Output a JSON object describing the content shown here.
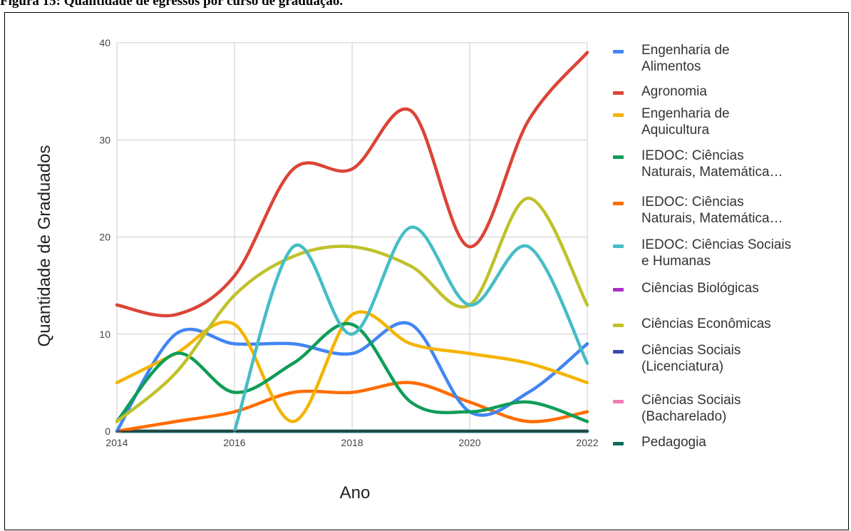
{
  "caption": "Figura 15: Quantidade de egressos por curso de graduação.",
  "chart_data": {
    "type": "line",
    "title": "",
    "xlabel": "Ano",
    "ylabel": "Quantidade de Graduados",
    "xlim": [
      2014,
      2022
    ],
    "ylim": [
      0,
      40
    ],
    "x_ticks": [
      "2014",
      "2016",
      "2018",
      "2020",
      "2022"
    ],
    "y_ticks": [
      "0",
      "10",
      "20",
      "30",
      "40"
    ],
    "grid": true,
    "legend_position": "right",
    "x": [
      2014,
      2015,
      2016,
      2017,
      2018,
      2019,
      2020,
      2021,
      2022
    ],
    "series": [
      {
        "name": "Engenharia de Alimentos",
        "color": "#4285f4",
        "values": [
          0,
          10,
          9,
          9,
          8,
          11,
          2,
          4,
          9
        ]
      },
      {
        "name": "Agronomia",
        "color": "#db4437",
        "values": [
          13,
          12,
          16,
          27,
          27,
          33,
          19,
          32,
          39
        ]
      },
      {
        "name": "Engenharia de Aquicultura",
        "color": "#f4b400",
        "values": [
          5,
          8,
          11,
          1,
          12,
          9,
          8,
          7,
          5
        ]
      },
      {
        "name": "IEDOC: Ciências Naturais, Matemática…",
        "color": "#0f9d58",
        "values": [
          1,
          8,
          4,
          7,
          11,
          3,
          2,
          3,
          1
        ]
      },
      {
        "name": "IEDOC: Ciências Naturais, Matemática…",
        "color": "#ff6d01",
        "values": [
          0,
          1,
          2,
          4,
          4,
          5,
          3,
          1,
          2
        ]
      },
      {
        "name": "IEDOC: Ciências Sociais e Humanas",
        "color": "#46bdc6",
        "values": [
          null,
          null,
          0,
          19,
          10,
          21,
          13,
          19,
          7
        ]
      },
      {
        "name": "Ciências Biológicas",
        "color": "#ab30c4",
        "values": [
          0,
          0,
          0,
          0,
          0,
          0,
          0,
          0,
          0
        ]
      },
      {
        "name": "Ciências Econômicas",
        "color": "#bfc22a",
        "values": [
          1,
          6,
          14,
          18,
          19,
          17,
          13,
          24,
          13
        ]
      },
      {
        "name": "Ciências Sociais (Licenciatura)",
        "color": "#3949ab",
        "values": [
          0,
          0,
          0,
          0,
          0,
          0,
          0,
          0,
          0
        ]
      },
      {
        "name": "Ciências Sociais (Bacharelado)",
        "color": "#f07bb0",
        "values": [
          0,
          0,
          0,
          0,
          0,
          0,
          0,
          0,
          0
        ]
      },
      {
        "name": "Pedagogia",
        "color": "#0b6b58",
        "values": [
          0,
          0,
          0,
          0,
          0,
          0,
          0,
          0,
          0
        ]
      }
    ],
    "legend_labels": [
      [
        "Engenharia de",
        "Alimentos"
      ],
      [
        "Agronomia"
      ],
      [
        "Engenharia de",
        "Aquicultura"
      ],
      [
        "IEDOC: Ciências",
        "Naturais, Matemática…"
      ],
      [
        "IEDOC: Ciências",
        "Naturais, Matemática…"
      ],
      [
        "IEDOC: Ciências Sociais",
        "e Humanas"
      ],
      [
        "Ciências Biológicas"
      ],
      [
        "Ciências Econômicas"
      ],
      [
        "Ciências Sociais",
        "(Licenciatura)"
      ],
      [
        "Ciências Sociais",
        "(Bacharelado)"
      ],
      [
        "Pedagogia"
      ]
    ]
  }
}
